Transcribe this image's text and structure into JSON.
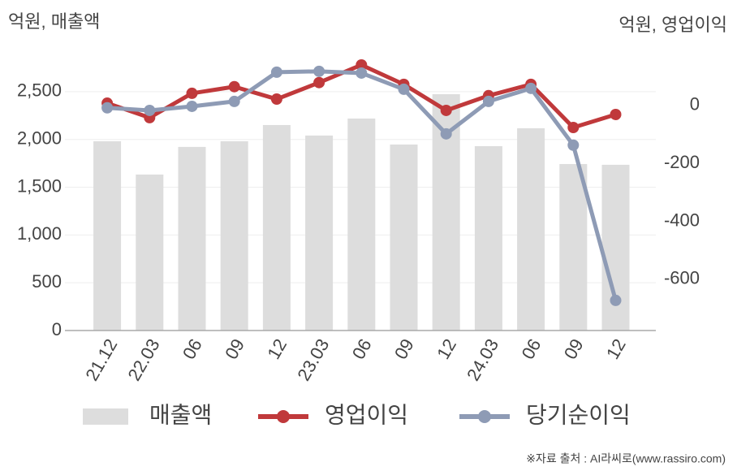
{
  "chart_data": {
    "type": "bar_line",
    "left_axis_label": "억원, 매출액",
    "right_axis_label": "억원, 영업이익",
    "source": "※자료 출처 : AI라씨로(www.rassiro.com)",
    "categories": [
      "21.12",
      "22.03",
      "06",
      "09",
      "12",
      "23.03",
      "06",
      "09",
      "12",
      "24.03",
      "06",
      "09",
      "12"
    ],
    "series": [
      {
        "name": "매출액",
        "color": "#dddddd",
        "kind": "bar",
        "values": [
          1981,
          1633,
          1922,
          1981,
          2151,
          2041,
          2219,
          1947,
          2474,
          1930,
          2117,
          1743,
          1735
        ]
      },
      {
        "name": "영업이익",
        "color": "#c0393b",
        "kind": "line",
        "axis": "y2",
        "values": [
          8,
          -42,
          42,
          65,
          22,
          79,
          140,
          73,
          -17,
          34,
          73,
          -76,
          -31
        ]
      },
      {
        "name": "당기순이익",
        "color": "#8e9bb5",
        "kind": "line",
        "axis": "y2",
        "values": [
          -8,
          -17,
          -3,
          14,
          115,
          118,
          112,
          56,
          -98,
          14,
          59,
          -137,
          -673
        ]
      }
    ],
    "ylim": [
      0,
      2950
    ],
    "yticks": [
      0,
      500,
      {
        "value": 1000,
        "label": "1,000"
      },
      {
        "value": 1500,
        "label": "1,500"
      },
      {
        "value": 2000,
        "label": "2,000"
      },
      {
        "value": 2500,
        "label": "2,500"
      }
    ],
    "y2lim": [
      -777,
      196
    ],
    "y2ticks": [
      0,
      -200,
      -400,
      -600
    ],
    "grid": true
  }
}
